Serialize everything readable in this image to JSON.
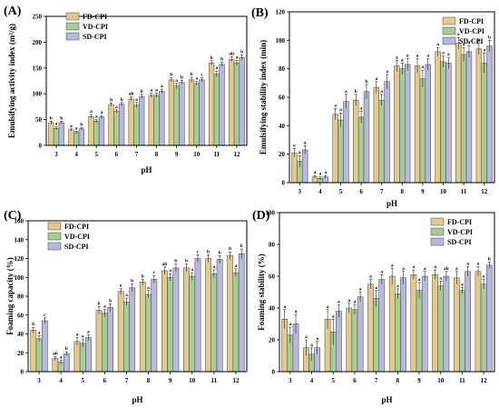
{
  "chart_data": [
    {
      "type": "bar",
      "panel_label": "(A)",
      "xlabel": "pH",
      "ylabel": "Emulsifying activity index (m²/g)",
      "ylim": [
        0,
        250
      ],
      "yticks": [
        0,
        50,
        100,
        150,
        200,
        250
      ],
      "categories": [
        "3",
        "4",
        "5",
        "6",
        "7",
        "8",
        "9",
        "10",
        "11",
        "12"
      ],
      "legend_position": "top-left",
      "series": [
        {
          "name": "FD-CPI",
          "values": [
            44,
            30,
            56,
            79,
            90,
            97,
            127,
            127,
            160,
            167
          ],
          "errors": [
            3,
            2,
            4,
            3,
            4,
            4,
            4,
            5,
            4,
            5
          ],
          "labels": [
            "b",
            "a",
            "a",
            "b",
            "ab",
            "a",
            "b",
            "b",
            "b",
            "ab"
          ]
        },
        {
          "name": "VD-CPI",
          "values": [
            33,
            25,
            47,
            66,
            78,
            97,
            115,
            120,
            138,
            160
          ],
          "errors": [
            3,
            2,
            3,
            3,
            5,
            4,
            5,
            4,
            6,
            5
          ],
          "labels": [
            "a",
            "a",
            "a",
            "a",
            "a",
            "a",
            "a",
            "a",
            "a",
            "a"
          ]
        },
        {
          "name": "SD-CPI",
          "values": [
            44,
            32,
            55,
            80,
            95,
            105,
            122,
            127,
            157,
            170
          ],
          "errors": [
            3,
            2,
            3,
            3,
            4,
            4,
            4,
            4,
            4,
            5
          ],
          "labels": [
            "b",
            "b",
            "a",
            "b",
            "b",
            "a",
            "b",
            "c",
            "b",
            "b"
          ]
        }
      ]
    },
    {
      "type": "bar",
      "panel_label": "(B)",
      "xlabel": "pH",
      "ylabel": "Emulsifying stability index (min)",
      "ylim": [
        0,
        120
      ],
      "yticks": [
        0,
        20,
        40,
        60,
        80,
        100,
        120
      ],
      "categories": [
        "3",
        "4",
        "5",
        "6",
        "7",
        "8",
        "9",
        "10",
        "11",
        "12"
      ],
      "legend_position": "top-right",
      "series": [
        {
          "name": "FD-CPI",
          "values": [
            21,
            4,
            48,
            58,
            67,
            82,
            82,
            92,
            98,
            94
          ],
          "errors": [
            3,
            1,
            4,
            4,
            4,
            4,
            5,
            3,
            4,
            4
          ],
          "labels": [
            "a",
            "a",
            "a",
            "b",
            "a",
            "a",
            "a",
            "a",
            "a",
            "a"
          ]
        },
        {
          "name": "VD-CPI",
          "values": [
            15,
            3,
            44,
            46,
            58,
            80,
            73,
            85,
            90,
            84
          ],
          "errors": [
            4,
            1,
            5,
            4,
            4,
            4,
            6,
            4,
            5,
            7
          ],
          "labels": [
            "a",
            "a",
            "a",
            "a",
            "a",
            "a",
            "a",
            "a",
            "a",
            "a"
          ]
        },
        {
          "name": "SD-CPI",
          "values": [
            23,
            4,
            57,
            64,
            71,
            83,
            83,
            84,
            92,
            96
          ],
          "errors": [
            3,
            1,
            5,
            5,
            5,
            4,
            4,
            4,
            4,
            4
          ],
          "labels": [
            "a",
            "a",
            "a",
            "b",
            "a",
            "a",
            "a",
            "a",
            "a",
            "b"
          ]
        }
      ]
    },
    {
      "type": "bar",
      "panel_label": "(C)",
      "xlabel": "pH",
      "ylabel": "Foaming capacity (%)",
      "ylim": [
        0,
        160
      ],
      "yticks": [
        0,
        20,
        40,
        60,
        80,
        100,
        120,
        140,
        160
      ],
      "categories": [
        "3",
        "4",
        "5",
        "6",
        "7",
        "8",
        "9",
        "10",
        "11",
        "12"
      ],
      "legend_position": "top-left",
      "series": [
        {
          "name": "FD-CPI",
          "values": [
            44,
            14,
            32,
            65,
            85,
            95,
            107,
            110,
            120,
            123
          ],
          "errors": [
            3,
            2,
            4,
            4,
            3,
            3,
            4,
            4,
            4,
            4
          ],
          "labels": [
            "b",
            "ab",
            "a",
            "b",
            "a",
            "b",
            "ab",
            "b",
            "b",
            "b"
          ]
        },
        {
          "name": "VD-CPI",
          "values": [
            35,
            10,
            30,
            62,
            74,
            82,
            100,
            101,
            104,
            105
          ],
          "errors": [
            3,
            2,
            4,
            4,
            4,
            4,
            4,
            4,
            4,
            4
          ],
          "labels": [
            "a",
            "a",
            "a",
            "a",
            "a",
            "a",
            "a",
            "a",
            "a",
            "a"
          ]
        },
        {
          "name": "SD-CPI",
          "values": [
            54,
            19,
            36,
            68,
            89,
            98,
            110,
            120,
            119,
            125
          ],
          "errors": [
            3,
            2,
            3,
            4,
            4,
            4,
            4,
            4,
            4,
            5
          ],
          "labels": [
            "c",
            "b",
            "a",
            "b",
            "b",
            "c",
            "b",
            "c",
            "b",
            "b"
          ]
        }
      ]
    },
    {
      "type": "bar",
      "panel_label": "(D)",
      "xlabel": "pH",
      "ylabel": "Foaming stability (%)",
      "ylim": [
        0,
        100
      ],
      "yticks": [
        0,
        20,
        40,
        60,
        80,
        100
      ],
      "categories": [
        "3",
        "4",
        "5",
        "6",
        "7",
        "8",
        "9",
        "10",
        "11",
        "12"
      ],
      "legend_position": "top-right",
      "series": [
        {
          "name": "FD-CPI",
          "values": [
            33,
            15,
            33,
            40,
            55,
            60,
            61,
            61,
            59,
            63
          ],
          "errors": [
            6,
            5,
            6,
            3,
            3,
            5,
            3,
            3,
            4,
            3
          ],
          "labels": [
            "a",
            "a",
            "a",
            "a",
            "a",
            "a",
            "a",
            "a",
            "a",
            "a"
          ]
        },
        {
          "name": "VD-CPI",
          "values": [
            23,
            11,
            25,
            39,
            46,
            49,
            51,
            54,
            51,
            55
          ],
          "errors": [
            5,
            4,
            8,
            3,
            5,
            3,
            5,
            3,
            2,
            3
          ],
          "labels": [
            "a",
            "a",
            "a",
            "a",
            "a",
            "a",
            "a",
            "a",
            "a",
            "a"
          ]
        },
        {
          "name": "SD-CPI",
          "values": [
            30,
            15,
            38,
            47,
            58,
            59,
            60,
            60,
            63,
            67
          ],
          "errors": [
            6,
            4,
            4,
            3,
            3,
            4,
            3,
            3,
            3,
            2
          ],
          "labels": [
            "a",
            "a",
            "a",
            "a",
            "a",
            "a",
            "a",
            "ab",
            "a",
            "b"
          ]
        }
      ]
    }
  ],
  "colors": {
    "FD-CPI": "#e3c98e",
    "VD-CPI": "#a8cc96",
    "SD-CPI": "#b7b8db",
    "axis": "#000000"
  }
}
